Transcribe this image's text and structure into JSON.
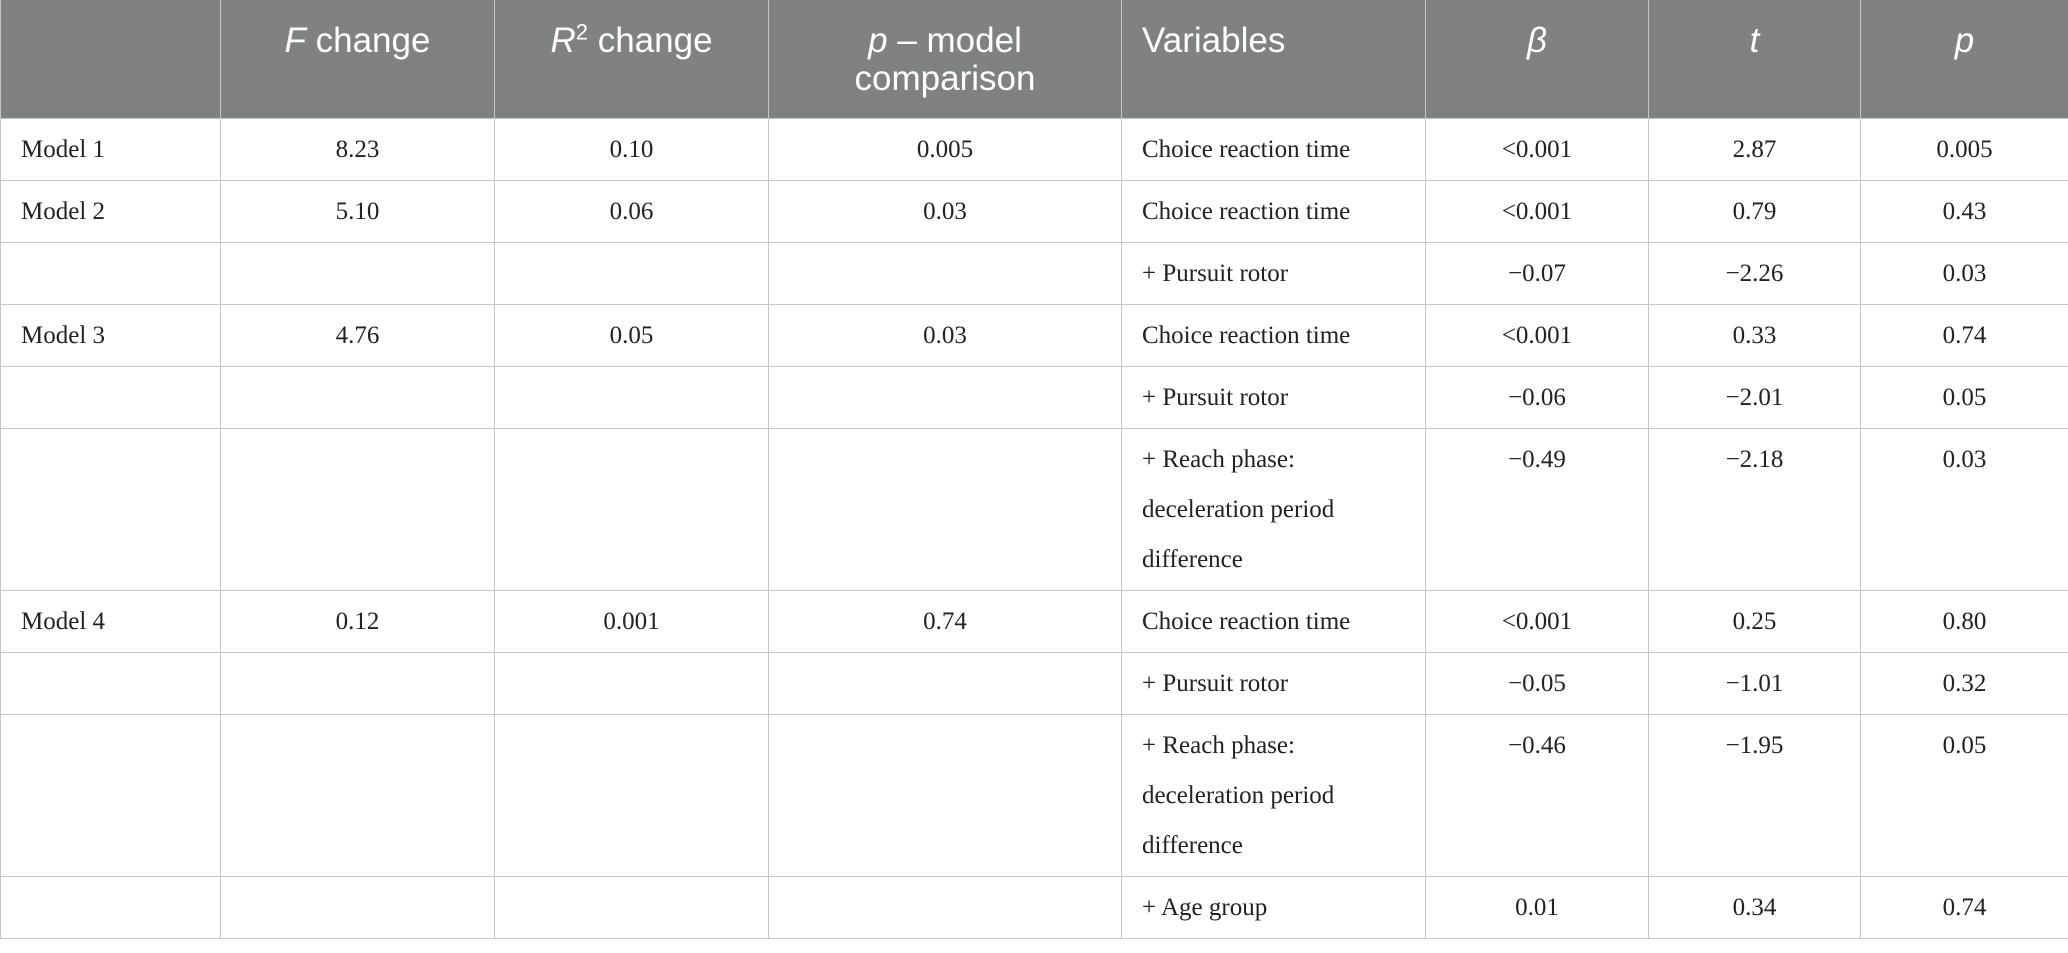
{
  "header": {
    "col0": "",
    "col1_var": "F",
    "col1_rest": " change",
    "col2_var": "R",
    "col2_sup": "2",
    "col2_rest": " change",
    "col3_var": "p",
    "col3_rest": " – model comparison",
    "col4": "Variables",
    "col5": "β",
    "col6": "t",
    "col7": "p"
  },
  "rows": [
    {
      "model": "Model 1",
      "f": "8.23",
      "r2": "0.10",
      "pm": "0.005",
      "var": "Choice reaction time",
      "beta": "<0.001",
      "t": "2.87",
      "p": "0.005"
    },
    {
      "model": "Model 2",
      "f": "5.10",
      "r2": "0.06",
      "pm": "0.03",
      "var": "Choice reaction time",
      "beta": "<0.001",
      "t": "0.79",
      "p": "0.43"
    },
    {
      "model": "",
      "f": "",
      "r2": "",
      "pm": "",
      "var": "+ Pursuit rotor",
      "beta": "−0.07",
      "t": "−2.26",
      "p": "0.03"
    },
    {
      "model": "Model 3",
      "f": "4.76",
      "r2": "0.05",
      "pm": "0.03",
      "var": "Choice reaction time",
      "beta": "<0.001",
      "t": "0.33",
      "p": "0.74"
    },
    {
      "model": "",
      "f": "",
      "r2": "",
      "pm": "",
      "var": "+ Pursuit rotor",
      "beta": "−0.06",
      "t": "−2.01",
      "p": "0.05"
    },
    {
      "model": "",
      "f": "",
      "r2": "",
      "pm": "",
      "var": "+ Reach phase: deceleration period difference",
      "beta": "−0.49",
      "t": "−2.18",
      "p": "0.03"
    },
    {
      "model": "Model 4",
      "f": "0.12",
      "r2": "0.001",
      "pm": "0.74",
      "var": "Choice reaction time",
      "beta": "<0.001",
      "t": "0.25",
      "p": "0.80"
    },
    {
      "model": "",
      "f": "",
      "r2": "",
      "pm": "",
      "var": "+ Pursuit rotor",
      "beta": "−0.05",
      "t": "−1.01",
      "p": "0.32"
    },
    {
      "model": "",
      "f": "",
      "r2": "",
      "pm": "",
      "var": "+ Reach phase: deceleration period difference",
      "beta": "−0.46",
      "t": "−1.95",
      "p": "0.05"
    },
    {
      "model": "",
      "f": "",
      "r2": "",
      "pm": "",
      "var": "+ Age group",
      "beta": "0.01",
      "t": "0.34",
      "p": "0.74"
    }
  ]
}
